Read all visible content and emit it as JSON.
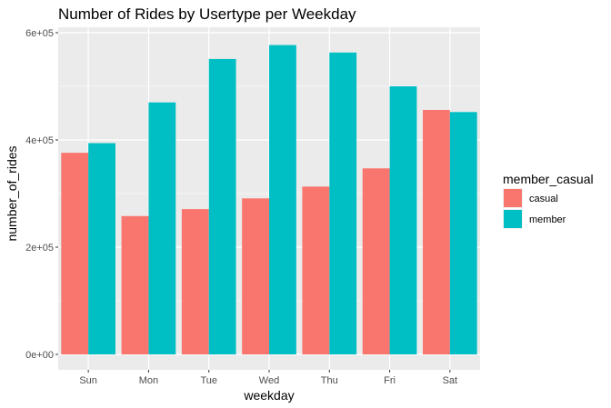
{
  "chart_data": {
    "type": "bar",
    "title": "Number of Rides by Usertype per Weekday",
    "xlabel": "weekday",
    "ylabel": "number_of_rides",
    "categories": [
      "Sun",
      "Mon",
      "Tue",
      "Wed",
      "Thu",
      "Fri",
      "Sat"
    ],
    "series": [
      {
        "name": "casual",
        "color": "#F8766D",
        "values": [
          376000,
          258000,
          271000,
          291000,
          313000,
          347000,
          456000
        ]
      },
      {
        "name": "member",
        "color": "#00BFC4",
        "values": [
          394000,
          470000,
          551000,
          577000,
          563000,
          500000,
          452000
        ]
      }
    ],
    "ylim": [
      0,
      600000
    ],
    "yticks": [
      0,
      200000,
      400000,
      600000
    ],
    "ytick_labels": [
      "0e+00",
      "2e+05",
      "4e+05",
      "6e+05"
    ],
    "grid": true,
    "panel_background": "#EBEBEB",
    "legend": {
      "title": "member_casual",
      "position": "right"
    }
  }
}
